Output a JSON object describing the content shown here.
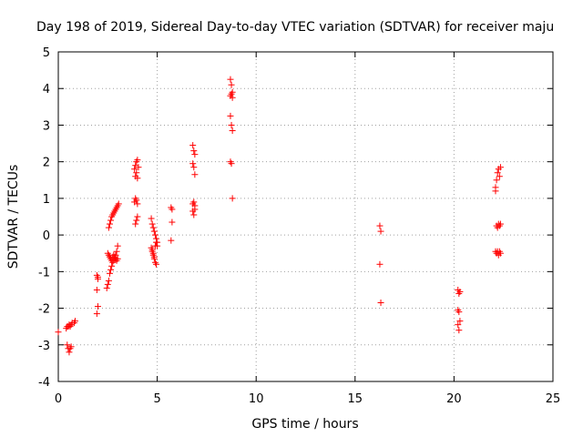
{
  "chart_data": {
    "type": "scatter",
    "title": "Day 198 of 2019, Sidereal Day-to-day VTEC variation (SDTVAR) for receiver maju",
    "xlabel": "GPS time / hours",
    "ylabel": "SDTVAR / TECUs",
    "xlim": [
      0,
      25
    ],
    "ylim": [
      -4,
      5
    ],
    "xticks": [
      0,
      5,
      10,
      15,
      20,
      25
    ],
    "yticks": [
      -4,
      -3,
      -2,
      -1,
      0,
      1,
      2,
      3,
      4,
      5
    ],
    "grid": true,
    "marker": "+",
    "color": "#ff0000",
    "series": [
      {
        "x": [
          0.0,
          0.4,
          0.45,
          0.5,
          0.55,
          0.6,
          0.65,
          0.7,
          0.8,
          0.85,
          0.45,
          0.5,
          0.55,
          0.6,
          0.65,
          1.95,
          2.0,
          1.95,
          2.0,
          1.95,
          2.0,
          2.45,
          2.5,
          2.55,
          2.6,
          2.65,
          2.7,
          2.75,
          2.8,
          2.85,
          2.9,
          2.95,
          3.0,
          2.5,
          2.55,
          2.6,
          2.65,
          2.7,
          2.75,
          2.8,
          2.85,
          2.9,
          2.95,
          3.0,
          2.55,
          2.6,
          2.65,
          2.7,
          2.75,
          2.8,
          2.85,
          2.9,
          2.95,
          3.0,
          3.05,
          3.85,
          3.9,
          3.95,
          4.0,
          4.05,
          3.9,
          3.95,
          4.0,
          3.85,
          3.9,
          3.95,
          4.0,
          3.9,
          3.95,
          4.0,
          4.7,
          4.75,
          4.8,
          4.85,
          4.9,
          4.95,
          5.0,
          4.75,
          4.8,
          4.85,
          4.9,
          4.95,
          4.7,
          4.75,
          4.8,
          4.85,
          4.9,
          4.95,
          5.0,
          5.7,
          5.75,
          5.7,
          5.75,
          6.8,
          6.85,
          6.9,
          6.8,
          6.85,
          6.9,
          6.8,
          6.85,
          6.9,
          6.8,
          6.85,
          6.9,
          8.7,
          8.75,
          8.8,
          8.7,
          8.75,
          8.8,
          8.7,
          8.75,
          8.8,
          8.7,
          8.75,
          8.8,
          16.25,
          16.3,
          16.25,
          16.3,
          20.2,
          20.25,
          20.3,
          20.2,
          20.25,
          20.3,
          20.2,
          20.25,
          22.1,
          22.15,
          22.2,
          22.25,
          22.3,
          22.35,
          22.1,
          22.15,
          22.2,
          22.25,
          22.3,
          22.35,
          22.1,
          22.15,
          22.2,
          22.25,
          22.3,
          22.35
        ],
        "y": [
          -2.65,
          -2.55,
          -2.5,
          -2.5,
          -2.45,
          -2.5,
          -2.45,
          -2.4,
          -2.4,
          -2.35,
          -3.0,
          -3.1,
          -3.2,
          -3.1,
          -3.05,
          -1.1,
          -1.2,
          -1.5,
          -1.95,
          -2.15,
          -1.15,
          -1.45,
          -1.35,
          -1.25,
          -1.05,
          -0.95,
          -0.85,
          -0.75,
          -0.7,
          -0.65,
          -0.55,
          -0.45,
          -0.3,
          -0.5,
          -0.55,
          -0.6,
          -0.65,
          -0.7,
          -0.6,
          -0.55,
          -0.6,
          -0.65,
          -0.7,
          -0.65,
          0.2,
          0.3,
          0.4,
          0.5,
          0.55,
          0.6,
          0.65,
          0.7,
          0.75,
          0.8,
          0.85,
          1.8,
          1.9,
          2.0,
          2.05,
          1.85,
          1.6,
          1.7,
          1.55,
          0.9,
          1.0,
          0.95,
          0.85,
          0.3,
          0.4,
          0.5,
          0.45,
          0.3,
          0.2,
          0.1,
          0.0,
          -0.1,
          -0.2,
          -0.4,
          -0.5,
          -0.6,
          -0.3,
          -0.2,
          -0.35,
          -0.45,
          -0.55,
          -0.65,
          -0.75,
          -0.8,
          -0.3,
          0.75,
          0.35,
          -0.15,
          0.7,
          2.45,
          2.3,
          2.2,
          1.95,
          1.85,
          1.65,
          0.85,
          0.9,
          0.8,
          0.65,
          0.55,
          0.7,
          4.25,
          4.1,
          3.9,
          3.8,
          3.85,
          3.75,
          3.25,
          3.0,
          2.85,
          2.0,
          1.95,
          1.0,
          0.25,
          0.1,
          -0.8,
          -1.85,
          -1.5,
          -1.6,
          -1.55,
          -2.05,
          -2.1,
          -2.35,
          -2.45,
          -2.6,
          1.3,
          1.5,
          1.7,
          1.8,
          1.6,
          1.85,
          1.2,
          0.25,
          0.2,
          0.3,
          0.25,
          0.3,
          -0.45,
          -0.5,
          -0.45,
          -0.55,
          -0.45,
          -0.5
        ]
      }
    ]
  }
}
